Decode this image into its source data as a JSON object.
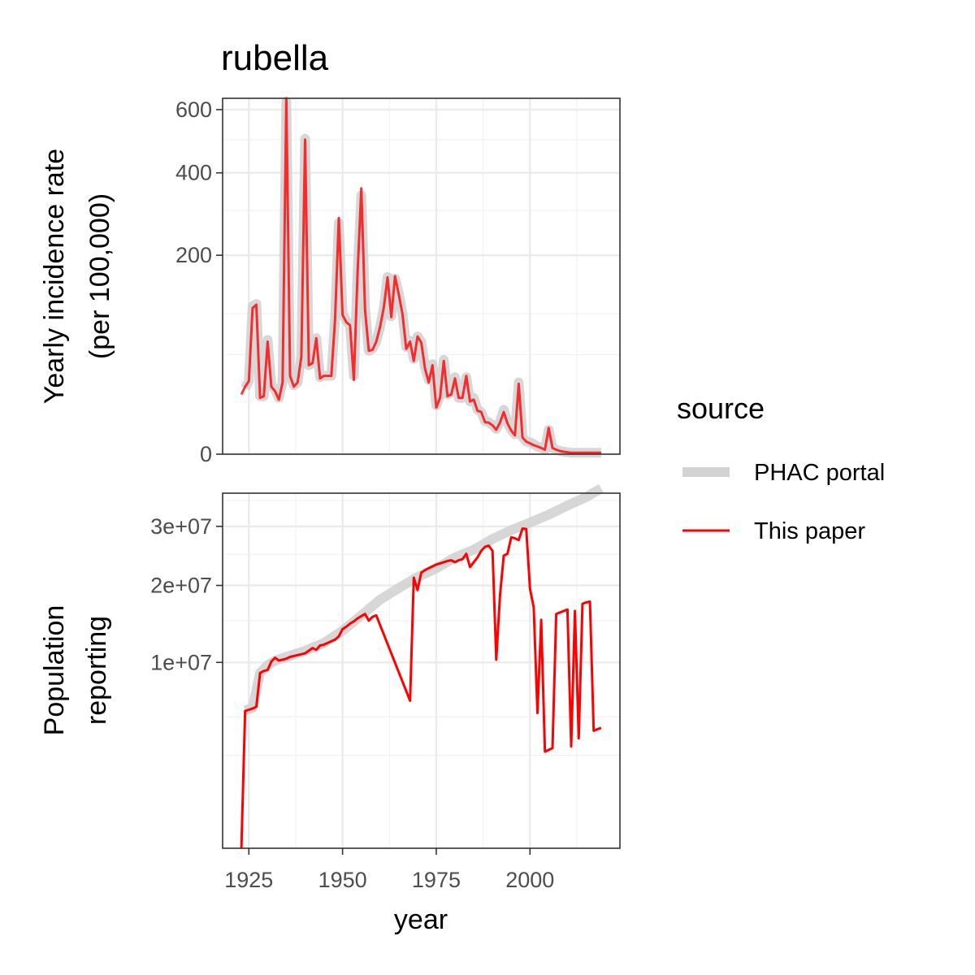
{
  "chart_data": {
    "type": "line",
    "title": "rubella",
    "xlabel": "year",
    "x_ticks": [
      "1925",
      "1950",
      "1975",
      "2000"
    ],
    "x_range": [
      1918,
      2024
    ],
    "legend": {
      "title": "source",
      "placement": "right",
      "entries": [
        {
          "label": "PHAC portal",
          "color": "#d3d3d3"
        },
        {
          "label": "This paper",
          "color": "#ff0000"
        }
      ]
    },
    "panels": [
      {
        "name": "incidence",
        "ylabel_lines": [
          "Yearly incidence rate",
          "(per 100,000)"
        ],
        "y_scale": "sqrt",
        "ylim": [
          0,
          640
        ],
        "y_ticks": [
          0,
          200,
          400,
          600
        ],
        "y_tick_labels": [
          "0",
          "200",
          "400",
          "600"
        ],
        "y_minor": [
          50,
          100,
          300,
          500
        ],
        "series": [
          {
            "name": "PHAC portal",
            "color": "#d3d3d3",
            "x": [
              1924,
              1925,
              1926,
              1927,
              1928,
              1929,
              1930,
              1931,
              1932,
              1933,
              1934,
              1935,
              1936,
              1937,
              1938,
              1939,
              1940,
              1941,
              1942,
              1943,
              1944,
              1945,
              1946,
              1947,
              1948,
              1949,
              1950,
              1951,
              1952,
              1953,
              1954,
              1955,
              1956,
              1957,
              1958,
              1959,
              1960,
              1961,
              1962,
              1963,
              1964,
              1965,
              1966,
              1967,
              1968,
              1969,
              1970,
              1971,
              1972,
              1973,
              1974,
              1975,
              1976,
              1977,
              1978,
              1979,
              1980,
              1981,
              1982,
              1983,
              1984,
              1985,
              1986,
              1987,
              1988,
              1989,
              1990,
              1991,
              1992,
              1993,
              1994,
              1995,
              1996,
              1997,
              1998,
              1999,
              2000,
              2001,
              2002,
              2003,
              2004,
              2005,
              2006,
              2007,
              2008,
              2009,
              2010,
              2011,
              2012,
              2013,
              2014,
              2015,
              2016,
              2017,
              2018,
              2019
            ],
            "y": [
              22,
              27,
              111,
              114,
              17,
              17,
              66,
              24,
              21,
              16,
              26,
              628,
              32,
              24,
              26,
              49,
              503,
              40,
              42,
              68,
              30,
              31,
              31,
              31,
              93,
              270,
              101,
              90,
              84,
              31,
              167,
              339,
              108,
              54,
              56,
              64,
              82,
              108,
              159,
              96,
              156,
              131,
              100,
              58,
              65,
              46,
              70,
              64,
              38,
              28,
              41,
              12,
              17,
              45,
              18,
              19,
              30,
              16,
              16,
              30,
              14,
              16,
              10,
              9,
              5.5,
              5.2,
              4.3,
              3.2,
              5.3,
              10,
              5,
              3,
              2,
              26,
              1.5,
              0.8,
              0.7,
              0.5,
              0.3,
              0.2,
              0.1,
              3,
              0.2,
              0.1,
              0.05,
              0.03,
              0.02,
              0.01,
              0.01,
              0.01,
              0.01,
              0.01,
              0.01,
              0.01,
              0.01,
              0.01
            ]
          },
          {
            "name": "This paper",
            "color": "#ff0000",
            "x": [
              1923,
              1924,
              1925,
              1926,
              1927,
              1928,
              1929,
              1930,
              1931,
              1932,
              1933,
              1934,
              1935,
              1936,
              1937,
              1938,
              1939,
              1940,
              1941,
              1942,
              1943,
              1944,
              1945,
              1946,
              1947,
              1948,
              1949,
              1950,
              1951,
              1952,
              1953,
              1954,
              1955,
              1956,
              1957,
              1958,
              1959,
              1960,
              1961,
              1962,
              1963,
              1964,
              1965,
              1966,
              1967,
              1968,
              1969,
              1970,
              1971,
              1972,
              1973,
              1974,
              1975,
              1976,
              1977,
              1978,
              1979,
              1980,
              1981,
              1982,
              1983,
              1984,
              1985,
              1986,
              1987,
              1988,
              1989,
              1990,
              1991,
              1992,
              1993,
              1994,
              1995,
              1996,
              1997,
              1998,
              1999,
              2000,
              2001,
              2002,
              2003,
              2004,
              2005,
              2006,
              2007,
              2008,
              2009,
              2010,
              2011,
              2012,
              2013,
              2014,
              2015,
              2016,
              2017,
              2018,
              2019
            ],
            "y": [
              18,
              23,
              27,
              108,
              113,
              16,
              17,
              64,
              23,
              20,
              15,
              26,
              640,
              31,
              23,
              26,
              48,
              500,
              40,
              42,
              68,
              29,
              31,
              31,
              31,
              92,
              282,
              98,
              88,
              84,
              28,
              166,
              357,
              105,
              54,
              55,
              64,
              82,
              109,
              158,
              95,
              160,
              129,
              99,
              56,
              64,
              44,
              70,
              63,
              37,
              26,
              40,
              11,
              16,
              44,
              17,
              18,
              29,
              16,
              16,
              31,
              14,
              15,
              9.5,
              9,
              5.2,
              5,
              4.2,
              3,
              5.1,
              9,
              4.8,
              2.8,
              1.8,
              25,
              1.4,
              0.8,
              0.6,
              0.4,
              0.3,
              0.2,
              0.1,
              3.5,
              0.2,
              0.1,
              0.05,
              0.03,
              0.02,
              0.01,
              0.01,
              0.01,
              0.01,
              0.01,
              0.01,
              0.01,
              0.01,
              0.01
            ]
          }
        ]
      },
      {
        "name": "population",
        "ylabel_lines": [
          "Population",
          "reporting"
        ],
        "y_scale": "sqrt",
        "ylim": [
          0,
          36500000
        ],
        "y_ticks": [
          10000000,
          20000000,
          30000000
        ],
        "y_tick_labels": [
          "1e+07",
          "2e+07",
          "3e+07"
        ],
        "y_minor": [
          2500000,
          5000000,
          15000000,
          25000000,
          35000000
        ],
        "series": [
          {
            "name": "PHAC portal",
            "color": "#d3d3d3",
            "x": [
              1924,
              1926,
              1928,
              1930,
              1932,
              1935,
              1940,
              1945,
              1950,
              1955,
              1960,
              1965,
              1970,
              1975,
              1980,
              1985,
              1990,
              1995,
              2000,
              2005,
              2010,
              2015,
              2019
            ],
            "y": [
              5500000,
              5700000,
              8900000,
              9700000,
              10200000,
              10600000,
              11300000,
              12200000,
              13700000,
              15700000,
              17900000,
              19600000,
              21300000,
              22700000,
              24500000,
              25800000,
              27700000,
              29300000,
              30700000,
              32200000,
              34000000,
              35700000,
              37500000
            ]
          },
          {
            "name": "This paper",
            "color": "#ff0000",
            "x": [
              1923,
              1924,
              1926,
              1927,
              1928,
              1929,
              1930,
              1931,
              1932,
              1933,
              1934,
              1935,
              1936,
              1937,
              1938,
              1939,
              1940,
              1941,
              1942,
              1943,
              1944,
              1945,
              1946,
              1947,
              1948,
              1949,
              1950,
              1951,
              1952,
              1953,
              1954,
              1955,
              1956,
              1957,
              1958,
              1959,
              1968,
              1969,
              1970,
              1971,
              1972,
              1973,
              1974,
              1975,
              1976,
              1977,
              1978,
              1979,
              1980,
              1981,
              1982,
              1983,
              1984,
              1985,
              1986,
              1987,
              1988,
              1989,
              1990,
              1991,
              1992,
              1993,
              1994,
              1995,
              1996,
              1997,
              1998,
              1999,
              2000,
              2001,
              2002,
              2003,
              2004,
              2005,
              2006,
              2007,
              2008,
              2009,
              2010,
              2011,
              2012,
              2013,
              2014,
              2015,
              2016,
              2017,
              2018,
              2019
            ],
            "y": [
              0,
              5450000,
              5650000,
              5800000,
              8900000,
              9100000,
              9200000,
              10100000,
              10500000,
              10200000,
              10300000,
              10400000,
              10600000,
              10700000,
              10800000,
              10900000,
              11000000,
              11300000,
              11600000,
              11400000,
              11900000,
              12000000,
              12200000,
              12400000,
              12600000,
              13000000,
              13900000,
              14200000,
              14600000,
              14900000,
              15300000,
              15600000,
              15900000,
              15000000,
              15500000,
              15700000,
              6300000,
              21200000,
              19300000,
              22000000,
              22400000,
              22700000,
              23000000,
              23300000,
              23500000,
              23700000,
              23900000,
              24000000,
              23700000,
              24000000,
              24200000,
              25100000,
              22900000,
              23700000,
              24500000,
              25600000,
              26300000,
              26500000,
              25600000,
              10300000,
              18500000,
              24800000,
              25100000,
              28000000,
              27800000,
              27500000,
              29600000,
              29500000,
              19500000,
              16800000,
              5300000,
              15100000,
              2700000,
              2800000,
              2900000,
              15900000,
              16100000,
              16300000,
              16500000,
              3000000,
              16300000,
              3500000,
              17300000,
              17500000,
              17600000,
              4000000,
              4100000,
              4200000
            ]
          }
        ]
      }
    ]
  }
}
